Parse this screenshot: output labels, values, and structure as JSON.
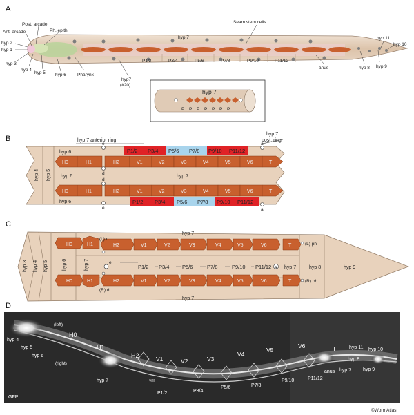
{
  "panels": [
    "A",
    "B",
    "C",
    "D"
  ],
  "panel_a": {
    "labels": {
      "ant_arcade": "Ant. arcade",
      "post_arcade": "Post. arcade",
      "ph_epith": "Ph. epith.",
      "hyp2": "hyp 2",
      "hyp1": "hyp 1",
      "hyp3": "hyp 3",
      "hyp4": "hyp 4",
      "hyp5": "hyp 5",
      "hyp6": "hyp 6",
      "pharynx": "Pharynx",
      "hyp7_body": "hyp 7",
      "hyp7_20": "hyp7",
      "hyp7_20b": "(#20)",
      "seam": "Seam stem cells",
      "anus": "anus",
      "hyp8": "hyp 8",
      "hyp9": "hyp 9",
      "hyp10": "hyp 10",
      "hyp11": "hyp 11"
    },
    "p_cells": [
      "P1/2",
      "P3/4",
      "P5/6",
      "P7/8",
      "P9/10",
      "P11/12"
    ],
    "inset_title": "hyp 7",
    "inset_p": "P"
  },
  "panel_b": {
    "anterior_ring": "hyp 7 anterior ring",
    "post_ring_1": "hyp 7",
    "post_ring_2": "post. ring",
    "hyp4": "hyp 4",
    "hyp5": "hyp 5",
    "hyp6": "hyp 6",
    "hyp7": "hyp 7",
    "seam": [
      "H0",
      "H1",
      "H2",
      "V1",
      "V2",
      "V3",
      "V4",
      "V5",
      "V6",
      "T"
    ],
    "p_cells": [
      "P1/2",
      "P3/4",
      "P5/6",
      "P7/8",
      "P9/10",
      "P11/12"
    ],
    "d": "d",
    "e": "e",
    "a": "a"
  },
  "panel_c": {
    "hyp3": "hyp 3",
    "hyp4": "hyp 4",
    "hyp5": "hyp 5",
    "hyp6": "hyp 6",
    "hyp7": "hyp 7",
    "hyp8": "hyp 8",
    "hyp9": "hyp 9",
    "seam": [
      "H0",
      "H1",
      "H2",
      "V1",
      "V2",
      "V3",
      "V4",
      "V5",
      "V6",
      "T"
    ],
    "p_cells": [
      "P1/2",
      "P3/4",
      "P5/6",
      "P7/8",
      "P9/10",
      "P11/12"
    ],
    "ld": "(L) d",
    "rd": "(R) d",
    "lph": "(L) ph",
    "rph": "(R) ph",
    "e": "e",
    "a": "a"
  },
  "panel_d": {
    "gfp": "GFP",
    "left": "(left)",
    "right": "(right)",
    "hyp4": "hyp 4",
    "hyp5": "hyp 5",
    "hyp6": "hyp 6",
    "hyp7": "hyp 7",
    "hyp7b": "hyp 7",
    "H0": "H0",
    "H1": "H1",
    "H2": "H2",
    "V1": "V1",
    "V2": "V2",
    "V3": "V3",
    "V4": "V4",
    "V5": "V5",
    "V6": "V6",
    "T": "T",
    "vm": "vm",
    "anus": "anus",
    "hyp8": "hyp 8",
    "hyp9": "hyp 9",
    "hyp10": "hyp 10",
    "hyp11": "hyp 11",
    "p_cells": [
      "P1/2",
      "P3/4",
      "P5/6",
      "P7/8",
      "P9/10",
      "P11/12"
    ]
  },
  "credit": "©WormAtlas",
  "colors": {
    "skin": "#e8d2bc",
    "body": "#dfc6ad",
    "seam": "#c8602e",
    "red": "#e02226",
    "blue": "#a8d4ec",
    "green": "#b8d49a",
    "pink": "#f0c8d8"
  }
}
